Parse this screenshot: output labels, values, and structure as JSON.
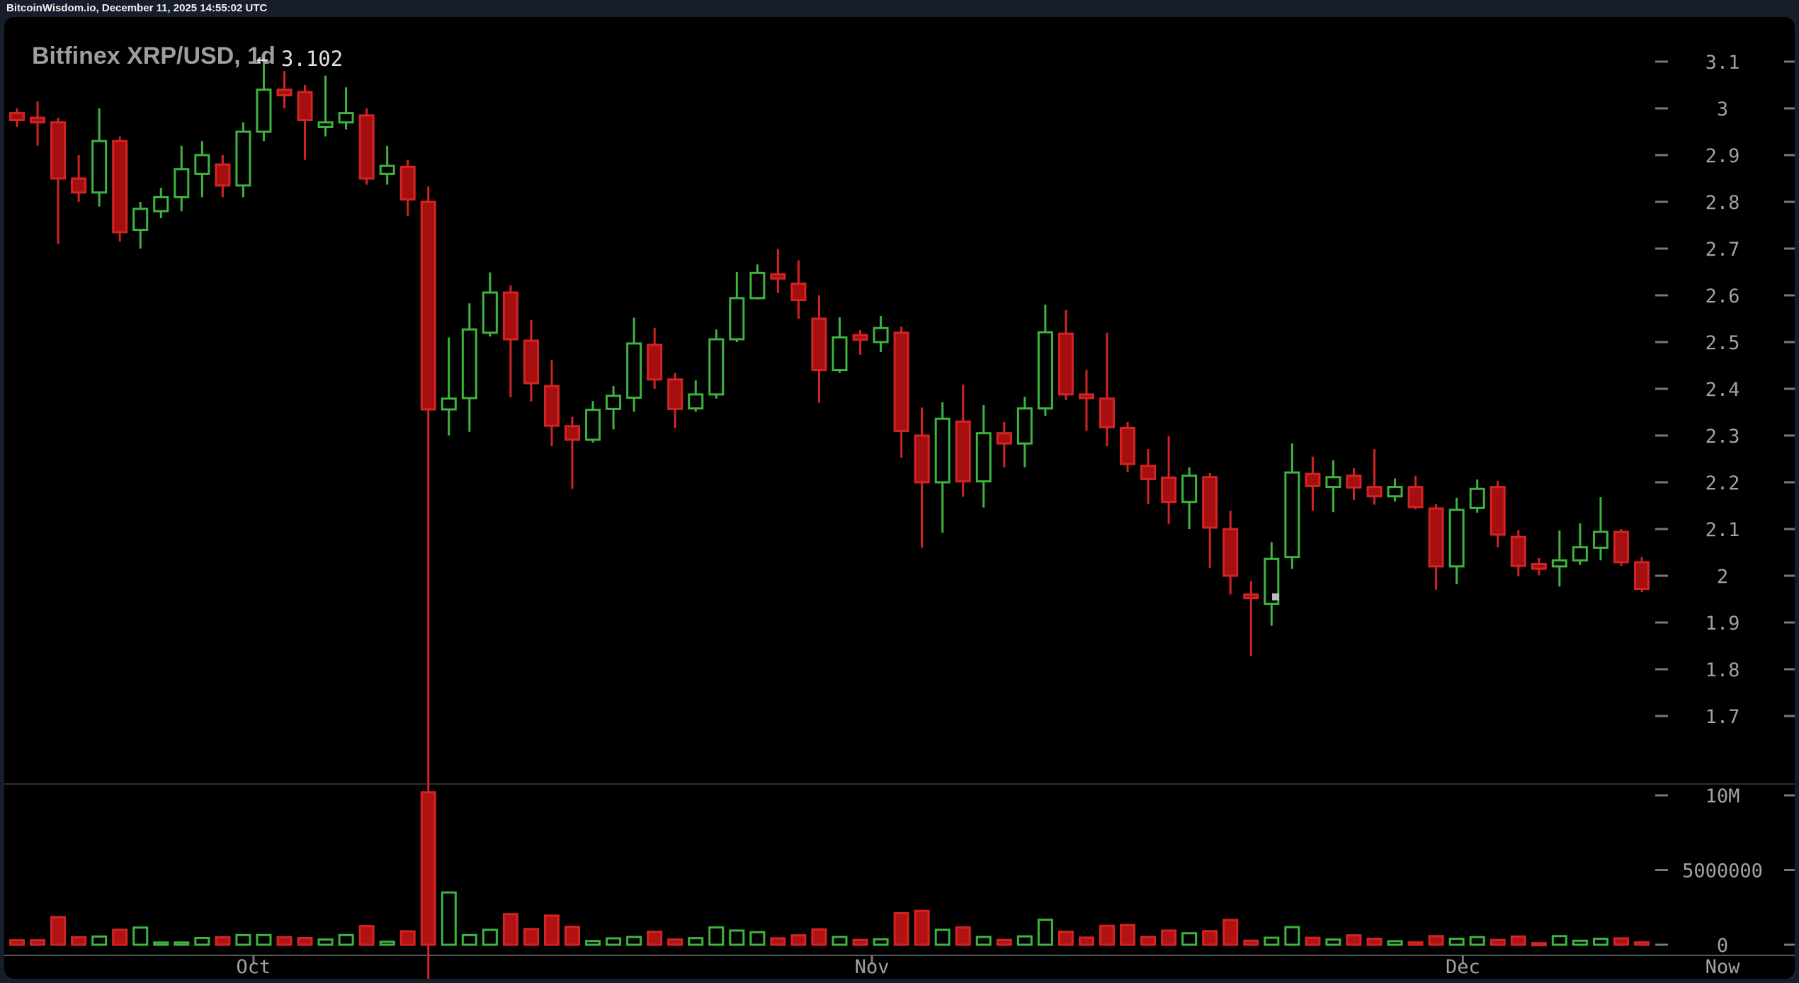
{
  "topbar": {
    "text": "BitcoinWisdom.io, December 11, 2025 14:55:02 UTC"
  },
  "chart": {
    "title": "Bitfinex XRP/USD, 1d",
    "annotation_text": "← 3.102"
  },
  "colors": {
    "background": "#171d2b",
    "chart_bg": "#000000",
    "green": "#3fb33f",
    "red_stroke": "#d22424",
    "red_fill": "#a50f0f",
    "red_volume": "#b31212",
    "axis_text": "#a2a2a2",
    "dash": "#787878",
    "divider": "#2d2d2d",
    "axis_line": "#5a5a5a",
    "marker": "#b9b9b9"
  },
  "chart_data": {
    "type": "candlestick_with_volume",
    "symbol": "Bitfinex XRP/USD",
    "interval": "1d",
    "title": "Bitfinex XRP/USD, 1d",
    "peak_label": "3.102",
    "legend_position": "none",
    "grid": false,
    "y_axis": {
      "ticks": [
        3.1,
        3,
        2.9,
        2.8,
        2.7,
        2.6,
        2.5,
        2.4,
        2.3,
        2.2,
        2.1,
        2,
        1.9,
        1.8,
        1.7
      ],
      "labels": [
        "3.1",
        "3",
        "2.9",
        "2.8",
        "2.7",
        "2.6",
        "2.5",
        "2.4",
        "2.3",
        "2.2",
        "2.1",
        "2",
        "1.9",
        "1.8",
        "1.7"
      ],
      "range_shown": [
        1.56,
        3.195
      ]
    },
    "volume_axis": {
      "labels": [
        "10M",
        "5000000",
        "0"
      ],
      "values": [
        10000000,
        5000000,
        0
      ]
    },
    "x_axis": {
      "ticks": [
        {
          "label": "Oct",
          "index": 11.5
        },
        {
          "label": "Nov",
          "index": 41.57
        },
        {
          "label": "Dec",
          "index": 70.3
        }
      ],
      "now_label": "Now"
    },
    "crash_index": 20,
    "marker_price": 1.955,
    "candles_format": [
      "open",
      "high",
      "low",
      "close",
      "volume_millions"
    ],
    "candles": [
      [
        2.99,
        3.0,
        2.96,
        2.975,
        0.3
      ],
      [
        2.98,
        3.015,
        2.92,
        2.97,
        0.3
      ],
      [
        2.97,
        2.98,
        2.71,
        2.85,
        1.85
      ],
      [
        2.85,
        2.9,
        2.8,
        2.82,
        0.5
      ],
      [
        2.82,
        3.0,
        2.79,
        2.93,
        0.55
      ],
      [
        2.93,
        2.94,
        2.715,
        2.735,
        1.0
      ],
      [
        2.74,
        2.8,
        2.7,
        2.785,
        1.15
      ],
      [
        2.78,
        2.83,
        2.765,
        2.81,
        0.15
      ],
      [
        2.81,
        2.92,
        2.78,
        2.87,
        0.15
      ],
      [
        2.86,
        2.93,
        2.81,
        2.9,
        0.45
      ],
      [
        2.88,
        2.9,
        2.81,
        2.835,
        0.5
      ],
      [
        2.835,
        2.97,
        2.81,
        2.95,
        0.65
      ],
      [
        2.95,
        3.102,
        2.93,
        3.04,
        0.65
      ],
      [
        3.04,
        3.08,
        3.0,
        3.028,
        0.5
      ],
      [
        3.035,
        3.05,
        2.89,
        2.975,
        0.45
      ],
      [
        2.96,
        3.07,
        2.94,
        2.97,
        0.35
      ],
      [
        2.97,
        3.045,
        2.955,
        2.99,
        0.65
      ],
      [
        2.985,
        3.0,
        2.837,
        2.85,
        1.25
      ],
      [
        2.86,
        2.92,
        2.837,
        2.877,
        0.2
      ],
      [
        2.875,
        2.89,
        2.77,
        2.805,
        0.9
      ],
      [
        2.8,
        2.833,
        1.25,
        2.356,
        10.2
      ],
      [
        2.356,
        2.51,
        2.3,
        2.379,
        3.5
      ],
      [
        2.38,
        2.583,
        2.308,
        2.527,
        0.65
      ],
      [
        2.52,
        2.649,
        2.512,
        2.606,
        1.0
      ],
      [
        2.606,
        2.621,
        2.382,
        2.506,
        2.05
      ],
      [
        2.503,
        2.547,
        2.373,
        2.412,
        1.05
      ],
      [
        2.406,
        2.462,
        2.277,
        2.321,
        1.95
      ],
      [
        2.32,
        2.34,
        2.186,
        2.291,
        1.2
      ],
      [
        2.291,
        2.374,
        2.285,
        2.355,
        0.25
      ],
      [
        2.357,
        2.406,
        2.313,
        2.385,
        0.43
      ],
      [
        2.381,
        2.552,
        2.351,
        2.497,
        0.52
      ],
      [
        2.494,
        2.53,
        2.4,
        2.42,
        0.87
      ],
      [
        2.42,
        2.434,
        2.316,
        2.357,
        0.35
      ],
      [
        2.358,
        2.418,
        2.351,
        2.388,
        0.44
      ],
      [
        2.388,
        2.527,
        2.379,
        2.506,
        1.16
      ],
      [
        2.506,
        2.65,
        2.5,
        2.594,
        0.95
      ],
      [
        2.594,
        2.666,
        2.591,
        2.648,
        0.84
      ],
      [
        2.645,
        2.699,
        2.605,
        2.636,
        0.43
      ],
      [
        2.625,
        2.675,
        2.55,
        2.59,
        0.63
      ],
      [
        2.55,
        2.6,
        2.37,
        2.44,
        1.03
      ],
      [
        2.44,
        2.553,
        2.434,
        2.51,
        0.52
      ],
      [
        2.515,
        2.526,
        2.473,
        2.505,
        0.32
      ],
      [
        2.5,
        2.556,
        2.479,
        2.53,
        0.37
      ],
      [
        2.52,
        2.533,
        2.252,
        2.31,
        2.11
      ],
      [
        2.3,
        2.36,
        2.06,
        2.2,
        2.27
      ],
      [
        2.2,
        2.371,
        2.092,
        2.336,
        1.0
      ],
      [
        2.33,
        2.409,
        2.169,
        2.202,
        1.16
      ],
      [
        2.202,
        2.365,
        2.146,
        2.305,
        0.52
      ],
      [
        2.305,
        2.329,
        2.232,
        2.283,
        0.32
      ],
      [
        2.283,
        2.383,
        2.232,
        2.358,
        0.56
      ],
      [
        2.358,
        2.58,
        2.342,
        2.521,
        1.67
      ],
      [
        2.518,
        2.569,
        2.376,
        2.388,
        0.87
      ],
      [
        2.388,
        2.441,
        2.31,
        2.38,
        0.48
      ],
      [
        2.379,
        2.52,
        2.277,
        2.318,
        1.27
      ],
      [
        2.316,
        2.329,
        2.222,
        2.239,
        1.32
      ],
      [
        2.235,
        2.271,
        2.153,
        2.207,
        0.52
      ],
      [
        2.21,
        2.299,
        2.111,
        2.158,
        0.95
      ],
      [
        2.158,
        2.232,
        2.1,
        2.214,
        0.77
      ],
      [
        2.211,
        2.22,
        2.017,
        2.103,
        0.91
      ],
      [
        2.1,
        2.139,
        1.96,
        2.0,
        1.66
      ],
      [
        1.96,
        1.989,
        1.828,
        1.952,
        0.27
      ],
      [
        1.94,
        2.072,
        1.893,
        2.036,
        0.47
      ],
      [
        2.04,
        2.283,
        2.015,
        2.221,
        1.18
      ],
      [
        2.218,
        2.255,
        2.139,
        2.192,
        0.47
      ],
      [
        2.19,
        2.247,
        2.136,
        2.211,
        0.35
      ],
      [
        2.214,
        2.23,
        2.162,
        2.189,
        0.63
      ],
      [
        2.19,
        2.271,
        2.152,
        2.17,
        0.4
      ],
      [
        2.17,
        2.208,
        2.159,
        2.19,
        0.24
      ],
      [
        2.19,
        2.214,
        2.142,
        2.147,
        0.16
      ],
      [
        2.144,
        2.153,
        1.97,
        2.02,
        0.58
      ],
      [
        2.02,
        2.167,
        1.982,
        2.141,
        0.4
      ],
      [
        2.145,
        2.206,
        2.135,
        2.186,
        0.51
      ],
      [
        2.19,
        2.203,
        2.061,
        2.088,
        0.32
      ],
      [
        2.083,
        2.098,
        1.999,
        2.021,
        0.55
      ],
      [
        2.025,
        2.038,
        2.001,
        2.015,
        0.11
      ],
      [
        2.02,
        2.097,
        1.977,
        2.033,
        0.58
      ],
      [
        2.033,
        2.112,
        2.023,
        2.061,
        0.27
      ],
      [
        2.06,
        2.168,
        2.033,
        2.094,
        0.4
      ],
      [
        2.094,
        2.1,
        2.021,
        2.029,
        0.43
      ],
      [
        2.029,
        2.04,
        1.965,
        1.972,
        0.16
      ]
    ]
  }
}
